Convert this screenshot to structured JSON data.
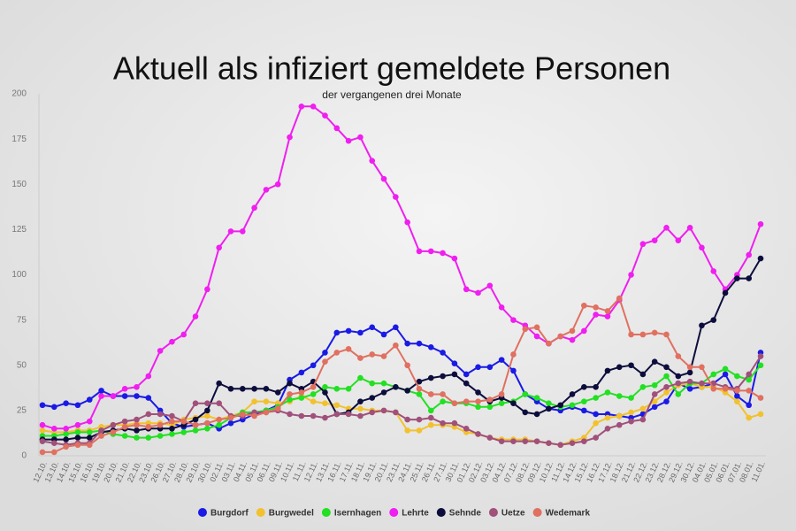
{
  "chart_data": {
    "type": "line",
    "title": "Aktuell als infiziert gemeldete Personen",
    "subtitle": "der vergangenen drei Monate",
    "categories": [
      "12.10.",
      "13.10.",
      "14.10.",
      "15.10.",
      "16.10.",
      "19.10.",
      "20.10.",
      "21.10.",
      "22.10.",
      "23.10.",
      "26.10.",
      "27.10.",
      "28.10.",
      "29.10.",
      "30.10.",
      "02.11.",
      "03.11.",
      "04.11.",
      "05.11.",
      "06.11.",
      "09.11.",
      "10.11.",
      "11.11.",
      "12.11.",
      "13.11.",
      "16.11.",
      "17.11.",
      "18.11.",
      "19.11.",
      "20.11.",
      "23.11.",
      "24.11.",
      "25.11.",
      "26.11.",
      "27.11.",
      "30.11.",
      "01.12.",
      "02.12.",
      "03.12.",
      "04.12.",
      "07.12.",
      "08.12.",
      "09.12.",
      "10.12.",
      "11.12.",
      "14.12.",
      "15.12.",
      "16.12.",
      "17.12.",
      "18.12.",
      "21.12.",
      "22.12.",
      "23.12.",
      "28.12.",
      "29.12.",
      "30.12.",
      "04.01.",
      "05.01.",
      "06.01.",
      "07.01.",
      "08.01.",
      "11.01."
    ],
    "series": [
      {
        "name": "Burgdorf",
        "color": "#1a1ae6",
        "values": [
          28,
          27,
          29,
          28,
          31,
          36,
          33,
          33,
          33,
          32,
          25,
          18,
          16,
          17,
          18,
          15,
          18,
          20,
          23,
          25,
          28,
          42,
          46,
          50,
          57,
          68,
          69,
          68,
          71,
          67,
          71,
          62,
          62,
          60,
          57,
          51,
          45,
          49,
          49,
          53,
          47,
          34,
          30,
          26,
          25,
          27,
          25,
          23,
          23,
          22,
          21,
          23,
          27,
          30,
          40,
          37,
          38,
          40,
          45,
          33,
          28,
          57
        ]
      },
      {
        "name": "Burgwedel",
        "color": "#f2c12e",
        "values": [
          14,
          13,
          13,
          14,
          14,
          16,
          17,
          17,
          18,
          18,
          18,
          17,
          20,
          21,
          22,
          20,
          22,
          24,
          30,
          30,
          29,
          30,
          33,
          30,
          29,
          28,
          26,
          26,
          25,
          25,
          24,
          14,
          14,
          17,
          17,
          16,
          13,
          12,
          10,
          9,
          9,
          9,
          8,
          7,
          6,
          8,
          10,
          18,
          21,
          22,
          24,
          26,
          30,
          35,
          39,
          40,
          38,
          38,
          35,
          30,
          21,
          23
        ]
      },
      {
        "name": "Isernhagen",
        "color": "#22e022",
        "values": [
          11,
          11,
          12,
          13,
          13,
          14,
          12,
          11,
          10,
          10,
          11,
          12,
          13,
          14,
          15,
          17,
          21,
          24,
          24,
          25,
          27,
          31,
          32,
          34,
          38,
          37,
          37,
          43,
          40,
          40,
          38,
          36,
          34,
          25,
          30,
          29,
          29,
          27,
          27,
          29,
          30,
          34,
          32,
          29,
          27,
          28,
          30,
          32,
          35,
          33,
          32,
          38,
          39,
          44,
          34,
          40,
          40,
          45,
          48,
          44,
          42,
          50
        ]
      },
      {
        "name": "Lehrte",
        "color": "#f01ef0",
        "values": [
          17,
          15,
          15,
          17,
          19,
          33,
          33,
          37,
          38,
          44,
          58,
          63,
          67,
          77,
          92,
          115,
          124,
          124,
          137,
          147,
          150,
          176,
          193,
          193,
          188,
          181,
          174,
          176,
          163,
          153,
          143,
          129,
          113,
          113,
          112,
          109,
          92,
          90,
          94,
          82,
          75,
          72,
          66,
          62,
          66,
          64,
          69,
          78,
          77,
          86,
          100,
          117,
          119,
          126,
          119,
          126,
          115,
          102,
          92,
          100,
          111,
          128
        ]
      },
      {
        "name": "Sehnde",
        "color": "#0d0d3d",
        "values": [
          9,
          9,
          9,
          10,
          10,
          13,
          14,
          15,
          14,
          15,
          15,
          15,
          17,
          20,
          25,
          40,
          37,
          37,
          37,
          37,
          35,
          40,
          37,
          41,
          35,
          23,
          24,
          30,
          32,
          35,
          38,
          36,
          41,
          43,
          44,
          45,
          40,
          35,
          30,
          32,
          29,
          24,
          23,
          26,
          28,
          34,
          38,
          38,
          47,
          49,
          50,
          45,
          52,
          49,
          44,
          46,
          72,
          75,
          90,
          98,
          98,
          109
        ]
      },
      {
        "name": "Uetze",
        "color": "#a0507a",
        "values": [
          8,
          7,
          6,
          7,
          7,
          14,
          17,
          19,
          20,
          23,
          23,
          22,
          19,
          29,
          29,
          29,
          22,
          22,
          24,
          24,
          25,
          23,
          22,
          22,
          21,
          23,
          23,
          22,
          24,
          25,
          24,
          20,
          20,
          21,
          18,
          18,
          15,
          12,
          10,
          8,
          8,
          8,
          8,
          7,
          6,
          7,
          8,
          10,
          15,
          17,
          19,
          20,
          34,
          38,
          40,
          41,
          40,
          40,
          38,
          37,
          45,
          55
        ]
      },
      {
        "name": "Wedemark",
        "color": "#e07060",
        "values": [
          2,
          2,
          5,
          6,
          6,
          11,
          13,
          16,
          17,
          16,
          17,
          19,
          19,
          17,
          18,
          20,
          21,
          23,
          22,
          24,
          26,
          34,
          35,
          38,
          52,
          57,
          59,
          54,
          56,
          55,
          61,
          50,
          37,
          34,
          34,
          29,
          30,
          30,
          31,
          34,
          56,
          70,
          71,
          62,
          66,
          69,
          83,
          82,
          80,
          87,
          67,
          67,
          68,
          67,
          55,
          49,
          49,
          37,
          37,
          36,
          36,
          32
        ]
      }
    ],
    "ylim": [
      0,
      200
    ],
    "yticks": [
      0,
      25,
      50,
      75,
      100,
      125,
      150,
      175,
      200
    ]
  }
}
